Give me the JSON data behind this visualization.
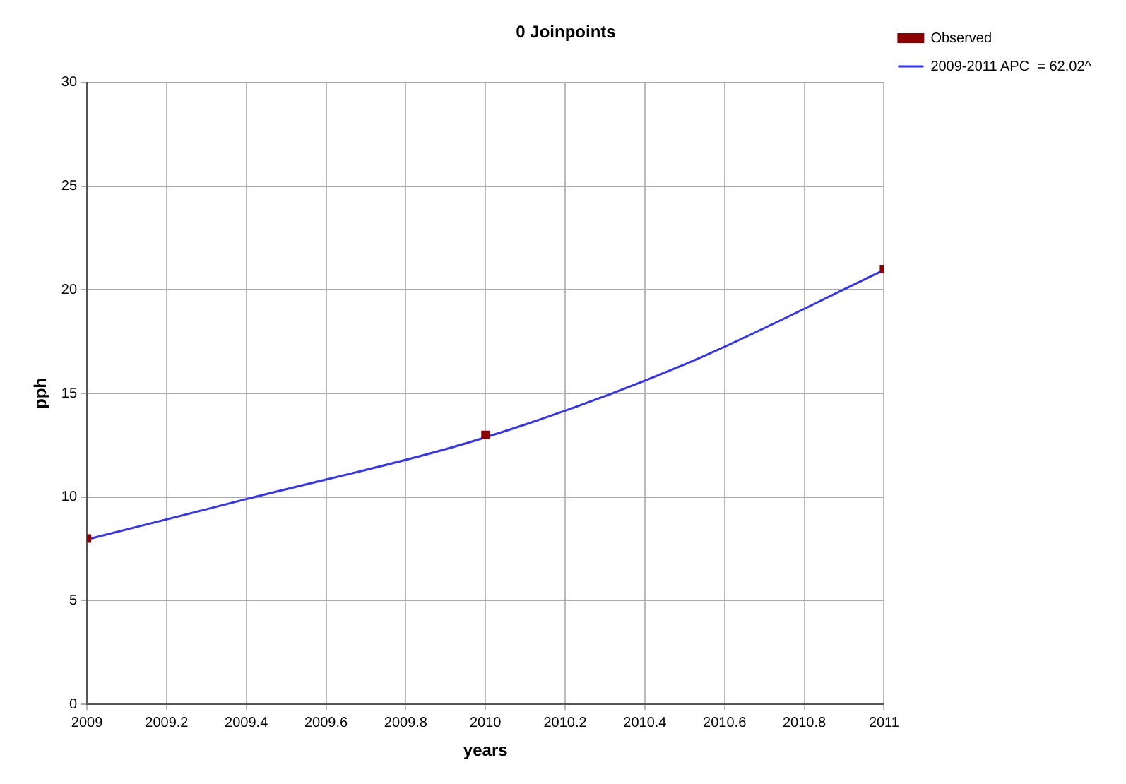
{
  "chart_data": {
    "type": "scatter",
    "title": "0 Joinpoints",
    "xlabel": "years",
    "ylabel": "pph",
    "xlim": [
      2009,
      2011
    ],
    "xticks": [
      2009,
      2009.2,
      2009.4,
      2009.6,
      2009.8,
      2010,
      2010.2,
      2010.4,
      2010.6,
      2010.8,
      2011
    ],
    "ylim": [
      0,
      30
    ],
    "yticks": [
      0,
      5,
      10,
      15,
      20,
      25,
      30
    ],
    "grid": true,
    "legend": "top right",
    "series": [
      {
        "name": "Observed",
        "type": "scatter",
        "marker": "square",
        "color": "#8b0000",
        "x": [
          2009,
          2010,
          2011
        ],
        "values": [
          8,
          13,
          21
        ]
      },
      {
        "name": "2009-2011 APC  = 62.02^",
        "type": "line",
        "marker": "none",
        "line_style": "solid",
        "color": "#3333ff",
        "x": [
          2009,
          2009.4,
          2010,
          2010.5,
          2011
        ],
        "values": [
          7.95,
          9.9,
          12.88,
          16.4,
          20.95
        ]
      }
    ]
  }
}
